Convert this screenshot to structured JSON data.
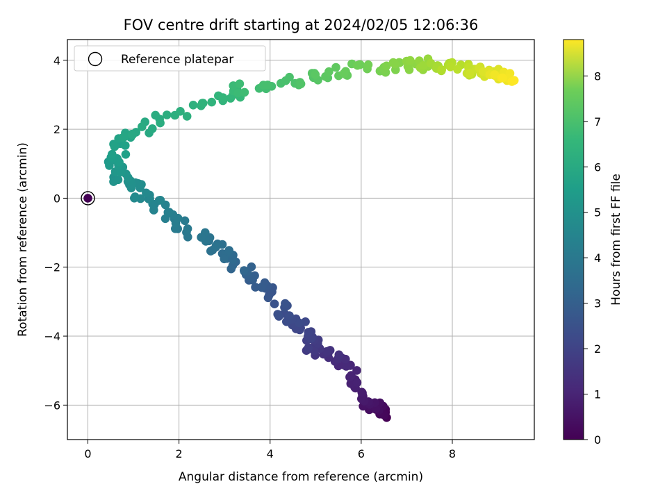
{
  "chart_data": {
    "type": "scatter",
    "title": "FOV centre drift starting at 2024/02/05 12:06:36",
    "xlabel": "Angular distance from reference (arcmin)",
    "ylabel": "Rotation from reference (arcmin)",
    "xlim": [
      -0.45,
      9.8
    ],
    "ylim": [
      -7.0,
      4.6
    ],
    "xticks": [
      0,
      2,
      4,
      6,
      8
    ],
    "yticks": [
      -6,
      -4,
      -2,
      0,
      2,
      4
    ],
    "xtick_labels": [
      "0",
      "2",
      "4",
      "6",
      "8"
    ],
    "ytick_labels": [
      "−6",
      "−4",
      "−2",
      "0",
      "2",
      "4"
    ],
    "grid": true,
    "legend": {
      "placement": "top-left",
      "entries": [
        "Reference platepar"
      ]
    },
    "reference_point": {
      "x": 0,
      "y": 0,
      "label": "Reference platepar"
    },
    "colorbar": {
      "label": "Hours from first FF file",
      "colormap": "viridis",
      "range": [
        0,
        8.8
      ],
      "ticks": [
        0,
        1,
        2,
        3,
        4,
        5,
        6,
        7,
        8
      ],
      "tick_labels": [
        "0",
        "1",
        "2",
        "3",
        "4",
        "5",
        "6",
        "7",
        "8"
      ]
    },
    "anchors": [
      {
        "t": 0.0,
        "x": 6.5,
        "y": -6.3
      },
      {
        "t": 0.3,
        "x": 6.3,
        "y": -6.1
      },
      {
        "t": 0.6,
        "x": 6.0,
        "y": -5.8
      },
      {
        "t": 0.9,
        "x": 5.8,
        "y": -5.0
      },
      {
        "t": 1.2,
        "x": 5.4,
        "y": -4.6
      },
      {
        "t": 1.5,
        "x": 5.0,
        "y": -4.4
      },
      {
        "t": 1.8,
        "x": 4.8,
        "y": -3.9
      },
      {
        "t": 2.1,
        "x": 4.4,
        "y": -3.4
      },
      {
        "t": 2.4,
        "x": 4.0,
        "y": -2.7
      },
      {
        "t": 2.7,
        "x": 3.5,
        "y": -2.2
      },
      {
        "t": 3.0,
        "x": 3.1,
        "y": -1.8
      },
      {
        "t": 3.3,
        "x": 2.8,
        "y": -1.4
      },
      {
        "t": 3.6,
        "x": 2.1,
        "y": -0.8
      },
      {
        "t": 3.9,
        "x": 1.6,
        "y": -0.3
      },
      {
        "t": 4.2,
        "x": 1.1,
        "y": 0.2
      },
      {
        "t": 4.5,
        "x": 0.7,
        "y": 0.6
      },
      {
        "t": 4.8,
        "x": 0.6,
        "y": 1.1
      },
      {
        "t": 5.1,
        "x": 0.8,
        "y": 1.7
      },
      {
        "t": 5.4,
        "x": 1.4,
        "y": 2.2
      },
      {
        "t": 5.7,
        "x": 2.8,
        "y": 2.8
      },
      {
        "t": 6.0,
        "x": 3.4,
        "y": 3.2
      },
      {
        "t": 6.3,
        "x": 4.5,
        "y": 3.4
      },
      {
        "t": 6.6,
        "x": 5.4,
        "y": 3.7
      },
      {
        "t": 7.0,
        "x": 6.5,
        "y": 3.8
      },
      {
        "t": 7.5,
        "x": 7.5,
        "y": 3.9
      },
      {
        "t": 8.0,
        "x": 8.3,
        "y": 3.7
      },
      {
        "t": 8.4,
        "x": 8.9,
        "y": 3.6
      },
      {
        "t": 8.8,
        "x": 9.2,
        "y": 3.5
      }
    ]
  }
}
